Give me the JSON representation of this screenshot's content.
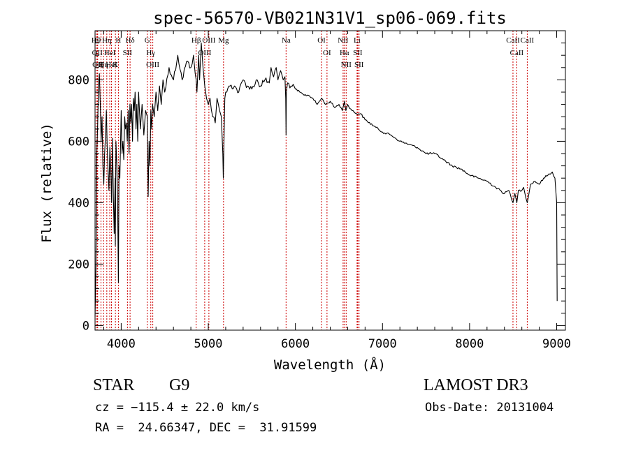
{
  "chart_data": {
    "type": "line",
    "title": "spec-56570-VB021N31V1_sp06-069.fits",
    "xlabel": "Wavelength (Å)",
    "ylabel": "Flux (relative)",
    "xlim": [
      3700,
      9100
    ],
    "ylim": [
      -15,
      960
    ],
    "x_ticks": [
      4000,
      5000,
      6000,
      7000,
      8000,
      9000
    ],
    "x_tick_labels": [
      "4000",
      "5000",
      "6000",
      "7000",
      "8000",
      "9000"
    ],
    "y_ticks": [
      0,
      200,
      400,
      600,
      800
    ],
    "y_tick_labels": [
      "0",
      "200",
      "400",
      "600",
      "800"
    ],
    "spectrum": {
      "x": [
        3700,
        3710,
        3720,
        3730,
        3740,
        3750,
        3760,
        3770,
        3780,
        3790,
        3800,
        3810,
        3820,
        3830,
        3840,
        3850,
        3860,
        3870,
        3880,
        3890,
        3900,
        3910,
        3920,
        3930,
        3933,
        3940,
        3950,
        3960,
        3968,
        3975,
        3985,
        4000,
        4010,
        4020,
        4030,
        4040,
        4050,
        4060,
        4070,
        4080,
        4090,
        4100,
        4110,
        4120,
        4130,
        4140,
        4150,
        4160,
        4170,
        4180,
        4190,
        4200,
        4220,
        4240,
        4260,
        4280,
        4300,
        4310,
        4320,
        4330,
        4340,
        4350,
        4360,
        4380,
        4400,
        4420,
        4440,
        4460,
        4480,
        4500,
        4550,
        4600,
        4650,
        4700,
        4750,
        4800,
        4830,
        4850,
        4861,
        4870,
        4890,
        4900,
        4920,
        4940,
        4960,
        4980,
        5000,
        5020,
        5050,
        5080,
        5100,
        5130,
        5150,
        5167,
        5172,
        5183,
        5190,
        5200,
        5250,
        5300,
        5350,
        5400,
        5450,
        5500,
        5550,
        5600,
        5650,
        5700,
        5720,
        5750,
        5780,
        5800,
        5830,
        5860,
        5880,
        5889,
        5893,
        5896,
        5910,
        5950,
        6000,
        6050,
        6100,
        6150,
        6200,
        6250,
        6300,
        6350,
        6400,
        6450,
        6500,
        6540,
        6563,
        6580,
        6600,
        6650,
        6700,
        6750,
        6800,
        6900,
        7000,
        7100,
        7200,
        7300,
        7400,
        7500,
        7600,
        7700,
        7800,
        7900,
        8000,
        8100,
        8200,
        8300,
        8400,
        8450,
        8498,
        8520,
        8542,
        8560,
        8600,
        8620,
        8662,
        8700,
        8750,
        8800,
        8850,
        8900,
        8950,
        8980,
        9000,
        9005
      ],
      "y": [
        30,
        180,
        560,
        650,
        780,
        820,
        720,
        600,
        680,
        520,
        460,
        560,
        620,
        700,
        580,
        500,
        440,
        580,
        520,
        400,
        610,
        420,
        300,
        480,
        260,
        600,
        520,
        380,
        140,
        520,
        480,
        700,
        560,
        600,
        540,
        680,
        640,
        660,
        600,
        700,
        560,
        720,
        660,
        720,
        600,
        740,
        700,
        760,
        640,
        720,
        600,
        760,
        640,
        720,
        620,
        700,
        680,
        420,
        600,
        520,
        700,
        640,
        720,
        680,
        760,
        700,
        780,
        720,
        800,
        760,
        840,
        800,
        880,
        800,
        860,
        840,
        880,
        820,
        800,
        760,
        880,
        800,
        920,
        840,
        780,
        740,
        720,
        740,
        680,
        660,
        740,
        700,
        680,
        560,
        480,
        640,
        740,
        760,
        780,
        780,
        760,
        800,
        780,
        770,
        800,
        780,
        800,
        790,
        840,
        810,
        840,
        800,
        830,
        800,
        810,
        740,
        620,
        760,
        790,
        780,
        770,
        760,
        750,
        750,
        740,
        720,
        740,
        720,
        730,
        710,
        720,
        700,
        730,
        700,
        720,
        700,
        690,
        690,
        670,
        650,
        630,
        620,
        600,
        590,
        580,
        560,
        560,
        540,
        520,
        510,
        490,
        480,
        470,
        450,
        430,
        440,
        400,
        430,
        400,
        440,
        440,
        450,
        400,
        460,
        470,
        460,
        480,
        490,
        500,
        480,
        400,
        80
      ]
    },
    "lines": [
      {
        "wave": 3712,
        "label": "Hθ"
      },
      {
        "wave": 3726,
        "label": "OII"
      },
      {
        "wave": 3730,
        "label": "OII"
      },
      {
        "wave": 3768,
        "label": "Q"
      },
      {
        "wave": 3798,
        "label": "Hη"
      },
      {
        "wave": 3835,
        "label": "Hη"
      },
      {
        "wave": 3869,
        "label": "HeI"
      },
      {
        "wave": 3889,
        "label": "HeI"
      },
      {
        "wave": 3934,
        "label": "K"
      },
      {
        "wave": 3968,
        "label": "H"
      },
      {
        "wave": 4072,
        "label": "SII"
      },
      {
        "wave": 4102,
        "label": "Hδ"
      },
      {
        "wave": 4300,
        "label": "G"
      },
      {
        "wave": 4340,
        "label": "Hγ"
      },
      {
        "wave": 4363,
        "label": "OIII"
      },
      {
        "wave": 4861,
        "label": "Hβ"
      },
      {
        "wave": 4959,
        "label": "OIII"
      },
      {
        "wave": 5007,
        "label": "OIII"
      },
      {
        "wave": 5175,
        "label": "Mg"
      },
      {
        "wave": 5893,
        "label": "Na"
      },
      {
        "wave": 6300,
        "label": "OI"
      },
      {
        "wave": 6363,
        "label": "OI"
      },
      {
        "wave": 6548,
        "label": "NII"
      },
      {
        "wave": 6563,
        "label": "Hα"
      },
      {
        "wave": 6583,
        "label": "NII"
      },
      {
        "wave": 6708,
        "label": "Li"
      },
      {
        "wave": 6716,
        "label": "SII"
      },
      {
        "wave": 6731,
        "label": "SII"
      },
      {
        "wave": 8498,
        "label": "CaII"
      },
      {
        "wave": 8542,
        "label": "CaII"
      },
      {
        "wave": 8662,
        "label": "CaII"
      }
    ],
    "line_color": "#cc0000",
    "curve_color": "#000000"
  },
  "info": {
    "object_class": "STAR",
    "subclass": "G9",
    "survey": "LAMOST DR3",
    "redshift": "cz = −115.4 ± 22.0 km/s",
    "obs_date": "Obs-Date: 20131004",
    "coords": "RA =  24.66347, DEC =  31.91599"
  }
}
